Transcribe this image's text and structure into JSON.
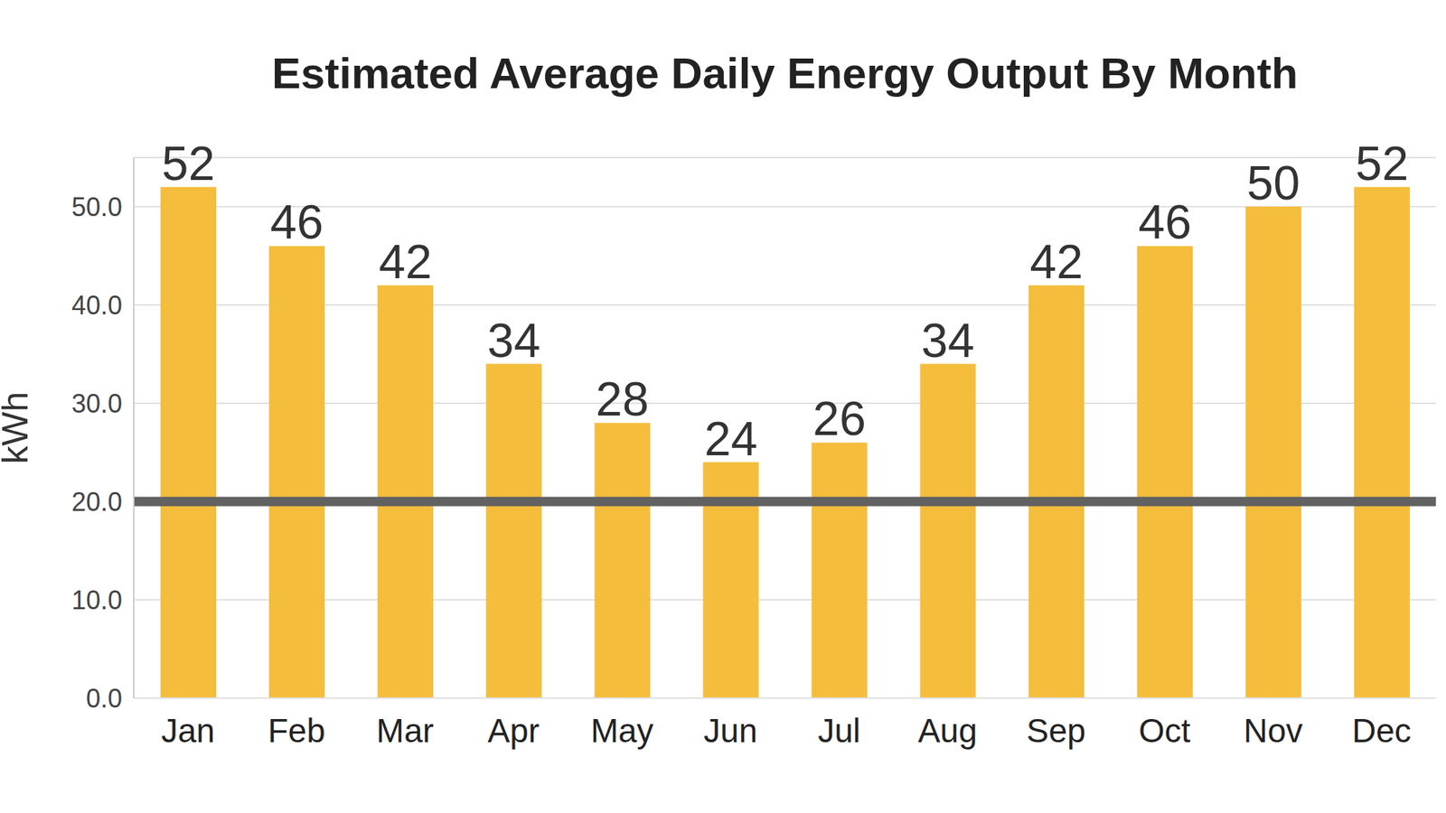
{
  "chart_data": {
    "type": "bar",
    "title": "Estimated Average Daily Energy Output By Month",
    "ylabel": "kWh",
    "categories": [
      "Jan",
      "Feb",
      "Mar",
      "Apr",
      "May",
      "Jun",
      "Jul",
      "Aug",
      "Sep",
      "Oct",
      "Nov",
      "Dec"
    ],
    "values": [
      52,
      46,
      42,
      34,
      28,
      24,
      26,
      34,
      42,
      46,
      50,
      52
    ],
    "color": "#f5bd3c",
    "ylim": [
      0,
      55
    ],
    "yticks": [
      {
        "value": 0,
        "label": "0.0"
      },
      {
        "value": 10,
        "label": "10.0"
      },
      {
        "value": 20,
        "label": "20.0"
      },
      {
        "value": 30,
        "label": "30.0"
      },
      {
        "value": 40,
        "label": "40.0"
      },
      {
        "value": 50,
        "label": "50.0"
      }
    ],
    "grid": true,
    "data_labels": true,
    "reference_line": 20
  }
}
